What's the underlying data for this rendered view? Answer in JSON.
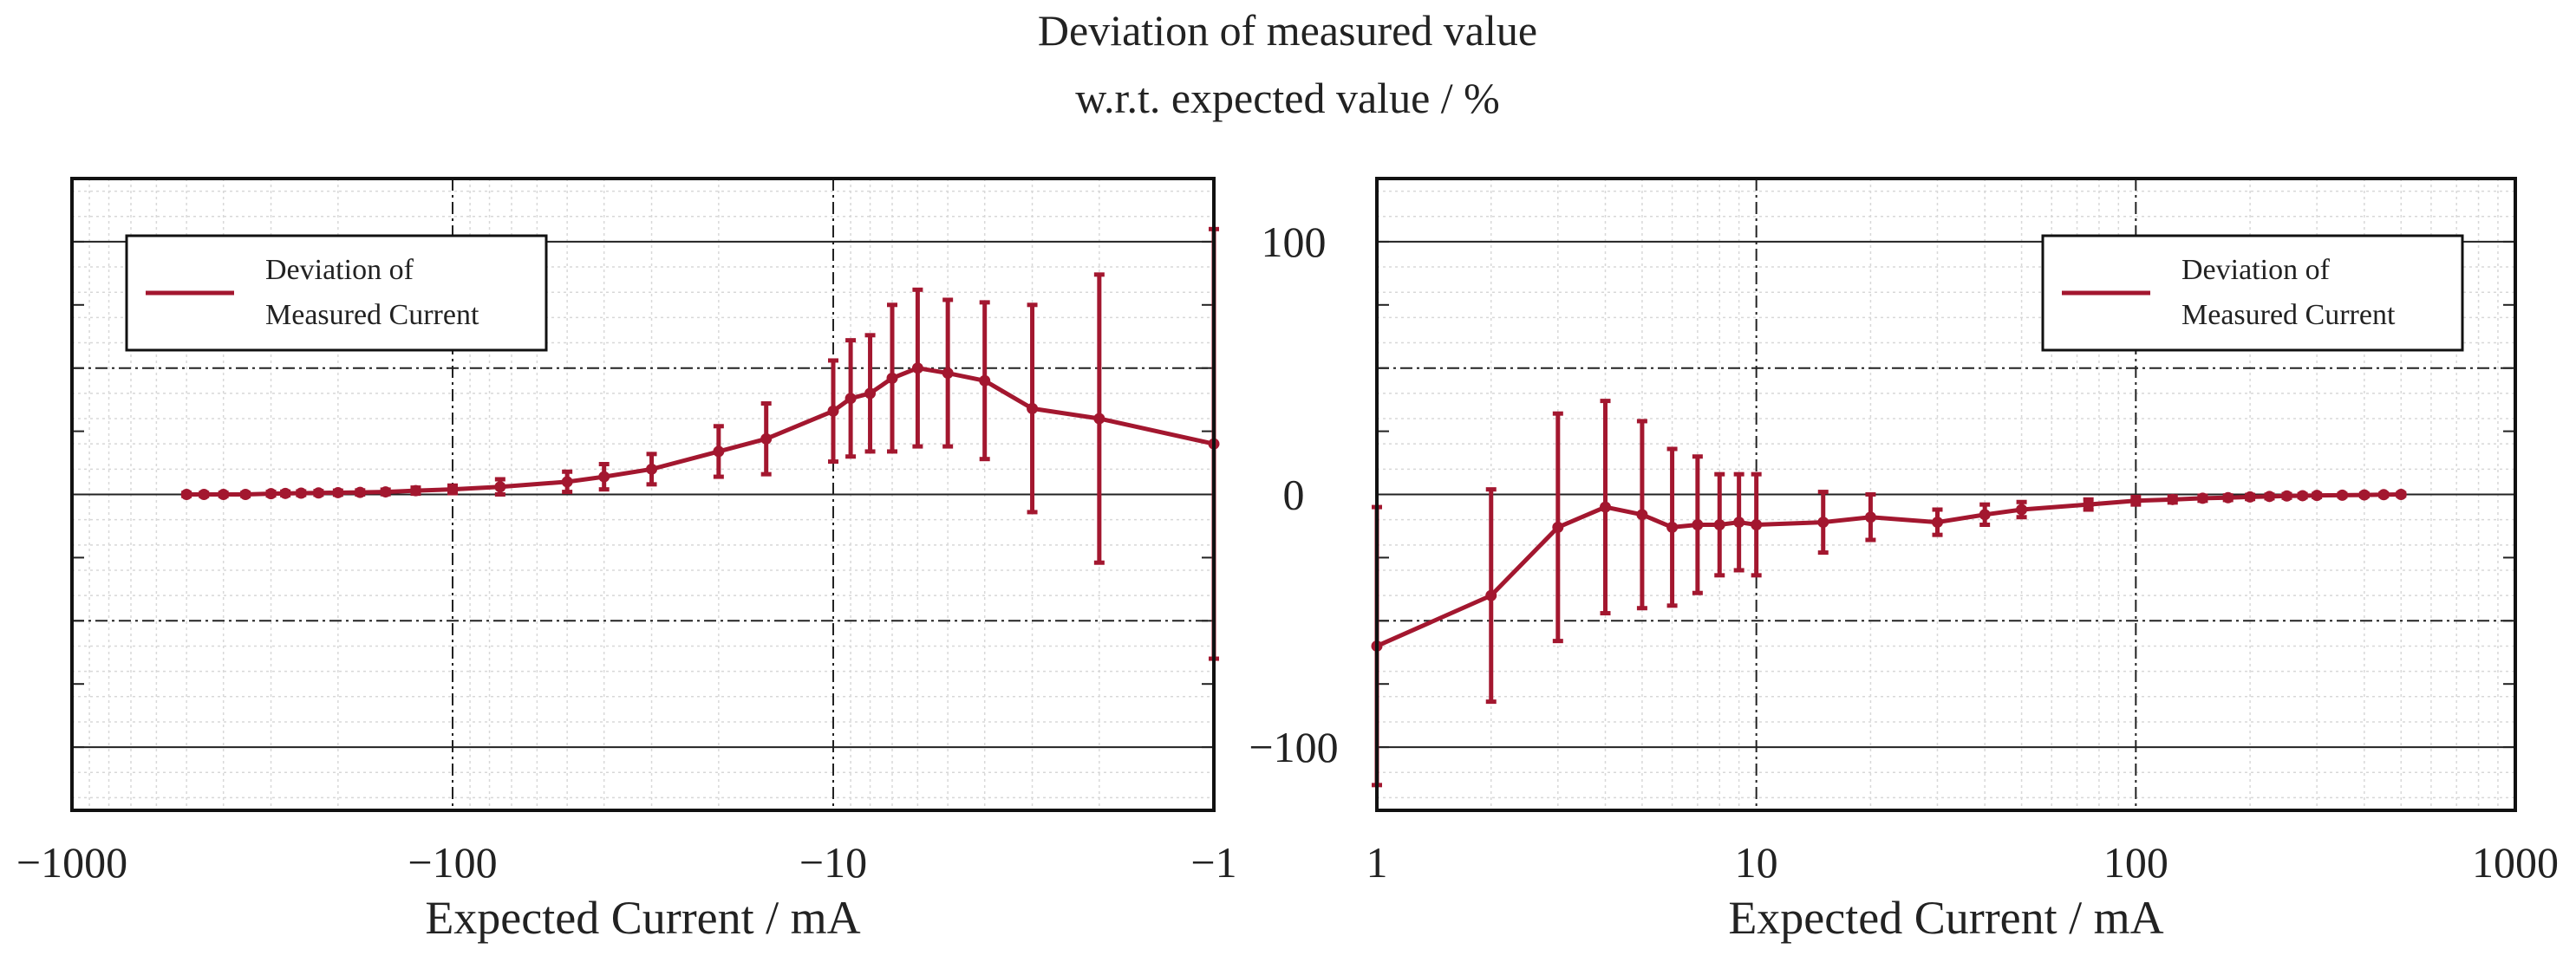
{
  "chart_data": {
    "type": "line",
    "title": [
      "Deviation of measured value",
      "w.r.t. expected value / %"
    ],
    "series_color": "#a3172f",
    "ylim": [
      -125,
      125
    ],
    "yticks": [
      100,
      0,
      -100
    ],
    "ytick_labels": [
      "100",
      "0",
      "−100"
    ],
    "panels": [
      {
        "name": "negative-current",
        "xscale": "symlog-negative",
        "xlim": [
          -1000,
          -1
        ],
        "xticks": [
          -1000,
          -100,
          -10,
          -1
        ],
        "xtick_labels": [
          "−1000",
          "−100",
          "−10",
          "−1"
        ],
        "xlabel": "Expected Current / mA",
        "legend": {
          "text": [
            "Deviation of",
            "Measured Current"
          ],
          "position": "top-left"
        },
        "points": [
          {
            "x": -500,
            "y": 0,
            "err": 0.6
          },
          {
            "x": -450,
            "y": 0,
            "err": 0.6
          },
          {
            "x": -400,
            "y": 0,
            "err": 0.6
          },
          {
            "x": -350,
            "y": 0,
            "err": 0.6
          },
          {
            "x": -300,
            "y": 0.3,
            "err": 0.7
          },
          {
            "x": -275,
            "y": 0.4,
            "err": 0.7
          },
          {
            "x": -250,
            "y": 0.5,
            "err": 0.7
          },
          {
            "x": -225,
            "y": 0.6,
            "err": 0.7
          },
          {
            "x": -200,
            "y": 0.7,
            "err": 0.8
          },
          {
            "x": -175,
            "y": 0.8,
            "err": 0.8
          },
          {
            "x": -150,
            "y": 1.0,
            "err": 0.9
          },
          {
            "x": -125,
            "y": 1.5,
            "err": 1.2
          },
          {
            "x": -100,
            "y": 2.0,
            "err": 1.5
          },
          {
            "x": -75,
            "y": 3.0,
            "err": 3.0
          },
          {
            "x": -50,
            "y": 5.0,
            "err": 4.0
          },
          {
            "x": -40,
            "y": 7.0,
            "err": 5.0
          },
          {
            "x": -30,
            "y": 10.0,
            "err": 6.0
          },
          {
            "x": -20,
            "y": 17.0,
            "err": 10.0
          },
          {
            "x": -15,
            "y": 22.0,
            "err": 14.0
          },
          {
            "x": -10,
            "y": 33.0,
            "err": 20.0
          },
          {
            "x": -9,
            "y": 38.0,
            "err": 23.0
          },
          {
            "x": -8,
            "y": 40.0,
            "err": 23.0
          },
          {
            "x": -7,
            "y": 46.0,
            "err": 29.0
          },
          {
            "x": -6,
            "y": 50.0,
            "err": 31.0
          },
          {
            "x": -5,
            "y": 48.0,
            "err": 29.0
          },
          {
            "x": -4,
            "y": 45.0,
            "err": 31.0
          },
          {
            "x": -3,
            "y": 34.0,
            "err": 41.0
          },
          {
            "x": -2,
            "y": 30.0,
            "err": 57.0
          },
          {
            "x": -1,
            "y": 20.0,
            "err": 85.0
          }
        ]
      },
      {
        "name": "positive-current",
        "xscale": "log",
        "xlim": [
          1,
          1000
        ],
        "xticks": [
          1,
          10,
          100,
          1000
        ],
        "xtick_labels": [
          "1",
          "10",
          "100",
          "1000"
        ],
        "xlabel": "Expected Current / mA",
        "legend": {
          "text": [
            "Deviation of",
            "Measured Current"
          ],
          "position": "top-right"
        },
        "points": [
          {
            "x": 1,
            "y": -60,
            "err": 55
          },
          {
            "x": 2,
            "y": -40,
            "err": 42
          },
          {
            "x": 3,
            "y": -13,
            "err": 45
          },
          {
            "x": 4,
            "y": -5,
            "err": 42
          },
          {
            "x": 5,
            "y": -8,
            "err": 37
          },
          {
            "x": 6,
            "y": -13,
            "err": 31
          },
          {
            "x": 7,
            "y": -12,
            "err": 27
          },
          {
            "x": 8,
            "y": -12,
            "err": 20
          },
          {
            "x": 9,
            "y": -11,
            "err": 19
          },
          {
            "x": 10,
            "y": -12,
            "err": 20
          },
          {
            "x": 15,
            "y": -11,
            "err": 12
          },
          {
            "x": 20,
            "y": -9,
            "err": 9
          },
          {
            "x": 30,
            "y": -11,
            "err": 5
          },
          {
            "x": 40,
            "y": -8,
            "err": 4
          },
          {
            "x": 50,
            "y": -6,
            "err": 3
          },
          {
            "x": 75,
            "y": -4,
            "err": 2
          },
          {
            "x": 100,
            "y": -2.5,
            "err": 1.5
          },
          {
            "x": 125,
            "y": -2,
            "err": 1.2
          },
          {
            "x": 150,
            "y": -1.5,
            "err": 1.0
          },
          {
            "x": 175,
            "y": -1.3,
            "err": 0.9
          },
          {
            "x": 200,
            "y": -1.0,
            "err": 0.8
          },
          {
            "x": 225,
            "y": -0.8,
            "err": 0.7
          },
          {
            "x": 250,
            "y": -0.6,
            "err": 0.7
          },
          {
            "x": 275,
            "y": -0.5,
            "err": 0.6
          },
          {
            "x": 300,
            "y": -0.4,
            "err": 0.6
          },
          {
            "x": 350,
            "y": -0.3,
            "err": 0.5
          },
          {
            "x": 400,
            "y": -0.2,
            "err": 0.5
          },
          {
            "x": 450,
            "y": -0.1,
            "err": 0.5
          },
          {
            "x": 500,
            "y": 0,
            "err": 0.5
          }
        ]
      }
    ]
  }
}
